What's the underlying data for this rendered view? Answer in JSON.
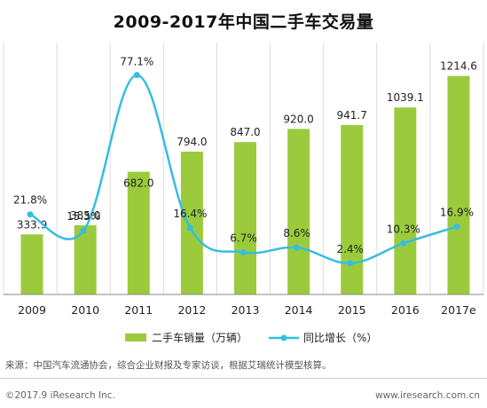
{
  "chart_data": {
    "type": "bar",
    "title": "2009-2017年中国二手车交易量",
    "categories": [
      "2009",
      "2010",
      "2011",
      "2012",
      "2013",
      "2014",
      "2015",
      "2016",
      "2017e"
    ],
    "series": [
      {
        "name": "二手车销量（万辆）",
        "type": "bar",
        "axis": "left",
        "values": [
          333.9,
          385.0,
          682.0,
          794.0,
          847.0,
          920.0,
          941.7,
          1039.1,
          1214.6
        ],
        "labels": [
          "333.9",
          "385.0",
          "682.0",
          "794.0",
          "847.0",
          "920.0",
          "941.7",
          "1039.1",
          "1214.6"
        ]
      },
      {
        "name": "同比增长（%）",
        "type": "line",
        "axis": "right",
        "values": [
          21.8,
          15.3,
          77.1,
          16.4,
          6.7,
          8.6,
          2.4,
          10.3,
          16.9
        ],
        "labels": [
          "21.8%",
          "15.3%",
          "77.1%",
          "16.4%",
          "6.7%",
          "8.6%",
          "2.4%",
          "10.3%",
          "16.9%"
        ]
      }
    ],
    "ylim": [
      0,
      1400
    ],
    "ylim_right": [
      -10,
      90
    ],
    "grid": true,
    "legend": "bottom",
    "colors": {
      "bar": "#9bcb3c",
      "line": "#37bde0",
      "grid": "#dddddd",
      "axis": "#888888"
    }
  },
  "footer": {
    "source": "来源：中国汽车流通协会，综合企业财报及专家访谈，根据艾瑞统计模型核算。",
    "copyright": "©2017.9 iResearch Inc.",
    "website": "www.iresearch.com.cn"
  }
}
